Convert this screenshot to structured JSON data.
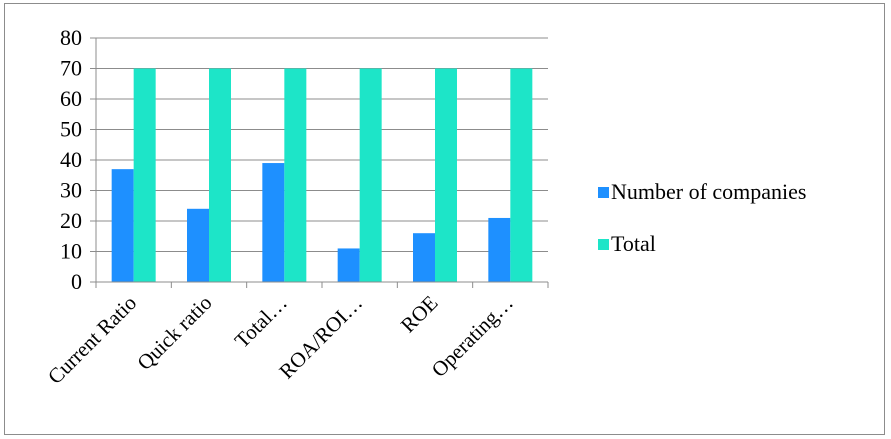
{
  "chart_data": {
    "type": "bar",
    "categories": [
      "Current Ratio",
      "Quick ratio",
      "Total…",
      "ROA/ROI…",
      "ROE",
      "Operating…"
    ],
    "series": [
      {
        "name": "Number of companies",
        "values": [
          37,
          24,
          39,
          11,
          16,
          21
        ],
        "color": "#1e90ff"
      },
      {
        "name": "Total",
        "values": [
          70,
          70,
          70,
          70,
          70,
          70
        ],
        "color": "#1de5c8"
      }
    ],
    "ylim": [
      0,
      80
    ],
    "yticks": [
      0,
      10,
      20,
      30,
      40,
      50,
      60,
      70,
      80
    ],
    "grid": true,
    "legend_position": "right",
    "title": "",
    "xlabel": "",
    "ylabel": ""
  }
}
